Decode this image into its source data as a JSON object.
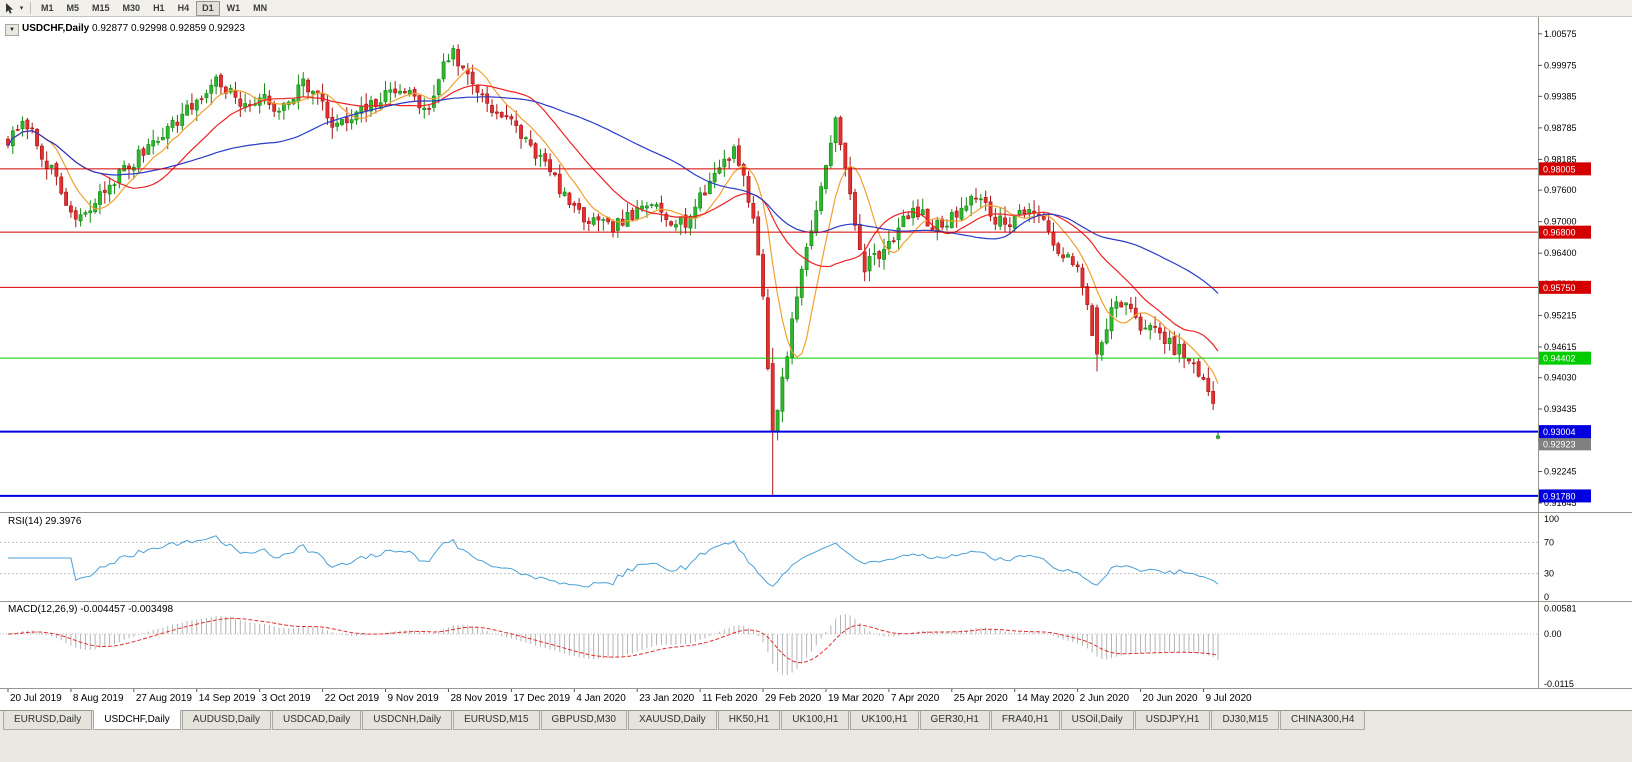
{
  "icons": {
    "chevron_down": "▼",
    "caret": "▾"
  },
  "toolbar": {
    "timeframes": [
      "M1",
      "M5",
      "M15",
      "M30",
      "H1",
      "H4",
      "D1",
      "W1",
      "MN"
    ],
    "active_timeframe": "D1"
  },
  "chart": {
    "symbol": "USDCHF,Daily",
    "ohlc_text": "0.92877 0.92998 0.92859 0.92923",
    "bid_tag": "0.92923",
    "bid_price": 0.92923,
    "bid_tag_color": "#808080",
    "price_axis_ticks": [
      "1.00575",
      "0.99975",
      "0.99385",
      "0.98785",
      "0.98185",
      "0.97600",
      "0.97000",
      "0.96400",
      "0.95810",
      "0.95215",
      "0.94615",
      "0.94030",
      "0.93435",
      "0.92840",
      "0.92245",
      "0.91645"
    ],
    "hlines": [
      {
        "price": 0.98005,
        "label": "0.98005",
        "color": "#d40000",
        "width": 1
      },
      {
        "price": 0.968,
        "label": "0.96800",
        "color": "#d40000",
        "width": 1
      },
      {
        "price": 0.9575,
        "label": "0.95750",
        "color": "#d40000",
        "width": 1
      },
      {
        "price": 0.94402,
        "label": "0.94402",
        "color": "#00cc00",
        "width": 1
      },
      {
        "price": 0.93004,
        "label": "0.93004",
        "color": "#0000e0",
        "width": 2
      },
      {
        "price": 0.9178,
        "label": "0.91780",
        "color": "#0000e0",
        "width": 2
      }
    ],
    "dates": [
      {
        "label": "20 Jul 2019",
        "i": 0
      },
      {
        "label": "8 Aug 2019",
        "i": 13
      },
      {
        "label": "27 Aug 2019",
        "i": 26
      },
      {
        "label": "14 Sep 2019",
        "i": 39
      },
      {
        "label": "3 Oct 2019",
        "i": 52
      },
      {
        "label": "22 Oct 2019",
        "i": 65
      },
      {
        "label": "9 Nov 2019",
        "i": 78
      },
      {
        "label": "28 Nov 2019",
        "i": 91
      },
      {
        "label": "17 Dec 2019",
        "i": 104
      },
      {
        "label": "4 Jan 2020",
        "i": 117
      },
      {
        "label": "23 Jan 2020",
        "i": 130
      },
      {
        "label": "11 Feb 2020",
        "i": 143
      },
      {
        "label": "29 Feb 2020",
        "i": 156
      },
      {
        "label": "19 Mar 2020",
        "i": 169
      },
      {
        "label": "7 Apr 2020",
        "i": 182
      },
      {
        "label": "25 Apr 2020",
        "i": 195
      },
      {
        "label": "14 May 2020",
        "i": 208
      },
      {
        "label": "2 Jun 2020",
        "i": 221
      },
      {
        "label": "20 Jun 2020",
        "i": 234
      },
      {
        "label": "9 Jul 2020",
        "i": 247
      }
    ]
  },
  "rsi": {
    "title": "RSI(14)",
    "value": "29.3976",
    "period": 14,
    "levels": [
      "100",
      "70",
      "30",
      "0"
    ],
    "level_values": [
      100,
      70,
      30,
      0
    ],
    "dashed_levels": [
      70,
      30
    ],
    "color": "#4aa0d8"
  },
  "macd": {
    "title": "MACD(12,26,9)",
    "values": "-0.004457 -0.003498",
    "params": [
      12,
      26,
      9
    ],
    "axis": [
      {
        "label": "0.00581",
        "v": 0.00581
      },
      {
        "label": "0.00",
        "v": 0
      },
      {
        "label": "-0.0115",
        "v": -0.0115
      }
    ],
    "hist_color": "#b4b4b4",
    "signal_color": "#e03030"
  },
  "chart_data": {
    "type": "candlestick",
    "symbol": "USDCHF",
    "timeframe": "Daily",
    "indicators": [
      "RSI(14)",
      "MACD(12,26,9)"
    ],
    "price_axis_range": [
      0.9155,
      1.008
    ],
    "candle_count": 251,
    "seed": 7,
    "price_anchors": [
      [
        0,
        0.9852
      ],
      [
        2,
        0.9872
      ],
      [
        4,
        0.9888
      ],
      [
        6,
        0.9848
      ],
      [
        9,
        0.9795
      ],
      [
        12,
        0.9732
      ],
      [
        14,
        0.9702
      ],
      [
        16,
        0.971
      ],
      [
        19,
        0.9748
      ],
      [
        23,
        0.9792
      ],
      [
        26,
        0.9812
      ],
      [
        29,
        0.9848
      ],
      [
        33,
        0.9878
      ],
      [
        36,
        0.9902
      ],
      [
        40,
        0.9938
      ],
      [
        43,
        0.997
      ],
      [
        46,
        0.9944
      ],
      [
        49,
        0.9912
      ],
      [
        52,
        0.9942
      ],
      [
        55,
        0.991
      ],
      [
        58,
        0.9936
      ],
      [
        61,
        0.9965
      ],
      [
        64,
        0.9938
      ],
      [
        67,
        0.9882
      ],
      [
        70,
        0.9888
      ],
      [
        74,
        0.9915
      ],
      [
        78,
        0.9938
      ],
      [
        81,
        0.996
      ],
      [
        84,
        0.9932
      ],
      [
        87,
        0.9908
      ],
      [
        90,
        1.0008
      ],
      [
        92,
        1.002
      ],
      [
        94,
        0.9988
      ],
      [
        97,
        0.9952
      ],
      [
        100,
        0.9918
      ],
      [
        102,
        0.99
      ],
      [
        104,
        0.9886
      ],
      [
        107,
        0.9855
      ],
      [
        110,
        0.982
      ],
      [
        113,
        0.978
      ],
      [
        115,
        0.975
      ],
      [
        117,
        0.9718
      ],
      [
        120,
        0.9702
      ],
      [
        124,
        0.9688
      ],
      [
        127,
        0.97
      ],
      [
        130,
        0.9716
      ],
      [
        134,
        0.9736
      ],
      [
        137,
        0.9706
      ],
      [
        140,
        0.97
      ],
      [
        143,
        0.9742
      ],
      [
        146,
        0.9792
      ],
      [
        148,
        0.9818
      ],
      [
        150,
        0.9838
      ],
      [
        152,
        0.979
      ],
      [
        154,
        0.97
      ],
      [
        156,
        0.956
      ],
      [
        157,
        0.943
      ],
      [
        158,
        0.93
      ],
      [
        159,
        0.9352
      ],
      [
        161,
        0.9452
      ],
      [
        163,
        0.956
      ],
      [
        165,
        0.9652
      ],
      [
        168,
        0.9762
      ],
      [
        170,
        0.9862
      ],
      [
        171,
        0.989
      ],
      [
        173,
        0.98
      ],
      [
        175,
        0.9692
      ],
      [
        177,
        0.9612
      ],
      [
        179,
        0.9632
      ],
      [
        182,
        0.9662
      ],
      [
        185,
        0.97
      ],
      [
        188,
        0.9722
      ],
      [
        191,
        0.9686
      ],
      [
        195,
        0.9706
      ],
      [
        198,
        0.9742
      ],
      [
        200,
        0.9752
      ],
      [
        203,
        0.9712
      ],
      [
        206,
        0.9696
      ],
      [
        208,
        0.971
      ],
      [
        211,
        0.9726
      ],
      [
        214,
        0.9692
      ],
      [
        217,
        0.9652
      ],
      [
        219,
        0.9626
      ],
      [
        221,
        0.9606
      ],
      [
        223,
        0.9536
      ],
      [
        225,
        0.9448
      ],
      [
        227,
        0.9506
      ],
      [
        229,
        0.9546
      ],
      [
        231,
        0.9536
      ],
      [
        234,
        0.9506
      ],
      [
        237,
        0.9488
      ],
      [
        240,
        0.9466
      ],
      [
        243,
        0.9448
      ],
      [
        245,
        0.942
      ],
      [
        247,
        0.9396
      ],
      [
        249,
        0.9345
      ],
      [
        250,
        0.92923
      ]
    ],
    "overrides": {
      "92": {
        "h": 1.0036
      },
      "158": {
        "o": 0.943,
        "h": 0.946,
        "l": 0.9178,
        "c": 0.93
      },
      "171": {
        "h": 0.9901
      },
      "225": {
        "o": 0.9536,
        "h": 0.9542,
        "l": 0.9415,
        "c": 0.9448
      },
      "250": {
        "o": 0.92877,
        "h": 0.92998,
        "l": 0.92859,
        "c": 0.92923
      }
    },
    "last_ohlc": {
      "o": 0.92877,
      "h": 0.92998,
      "l": 0.92859,
      "c": 0.92923
    },
    "ma": [
      {
        "period": 8,
        "color": "#f0a030"
      },
      {
        "period": 20,
        "color": "#ee2222"
      },
      {
        "period": 50,
        "color": "#2a3cc8"
      }
    ],
    "colors": {
      "up": "#2fb52f",
      "up_stroke": "#128a12",
      "down": "#e33030",
      "down_stroke": "#a81414"
    }
  },
  "tabs": {
    "active_index": 1,
    "items": [
      {
        "label": "EURUSD,Daily"
      },
      {
        "label": "USDCHF,Daily"
      },
      {
        "label": "AUDUSD,Daily"
      },
      {
        "label": "USDCAD,Daily"
      },
      {
        "label": "USDCNH,Daily"
      },
      {
        "label": "EURUSD,M15"
      },
      {
        "label": "GBPUSD,M30"
      },
      {
        "label": "XAUUSD,Daily"
      },
      {
        "label": "HK50,H1"
      },
      {
        "label": "UK100,H1"
      },
      {
        "label": "UK100,H1"
      },
      {
        "label": "GER30,H1"
      },
      {
        "label": "FRA40,H1"
      },
      {
        "label": "USOil,Daily"
      },
      {
        "label": "USDJPY,H1"
      },
      {
        "label": "DJ30,M15"
      },
      {
        "label": "CHINA300,H4"
      }
    ]
  }
}
